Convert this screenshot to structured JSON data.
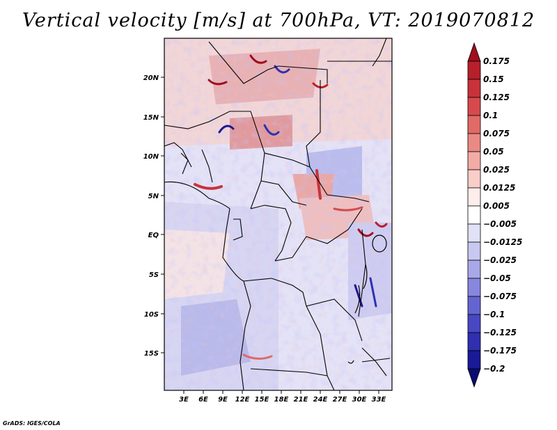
{
  "title": "Vertical velocity [m/s] at 700hPa, VT: 2019070812",
  "credit": "GrADS: IGES/COLA",
  "axes": {
    "lon_labels": [
      "3E",
      "6E",
      "9E",
      "12E",
      "15E",
      "18E",
      "21E",
      "24E",
      "27E",
      "30E",
      "33E"
    ],
    "lat_labels": [
      "20N",
      "15N",
      "10N",
      "5N",
      "EQ",
      "5S",
      "10S",
      "15S"
    ]
  },
  "colorbar": {
    "levels": [
      "0.175",
      "0.15",
      "0.125",
      "0.1",
      "0.075",
      "0.05",
      "0.025",
      "0.0125",
      "0.005",
      "-0.005",
      "-0.0125",
      "-0.025",
      "-0.05",
      "-0.075",
      "-0.1",
      "-0.125",
      "-0.175",
      "-0.2"
    ],
    "colors": [
      "#a00e1f",
      "#b71f2b",
      "#c8323b",
      "#d64a4d",
      "#e06a66",
      "#e98a84",
      "#f3aba5",
      "#f9cec9",
      "#fdeeeb",
      "#ffffff",
      "#e1e1f7",
      "#c8c8f0",
      "#a8a8e8",
      "#8787de",
      "#6565d1",
      "#4848c3",
      "#2f2fb0",
      "#1a1a96",
      "#0b0b72"
    ]
  },
  "legend": {
    "positive": "rising motion shaded red",
    "negative": "sinking motion shaded blue"
  }
}
